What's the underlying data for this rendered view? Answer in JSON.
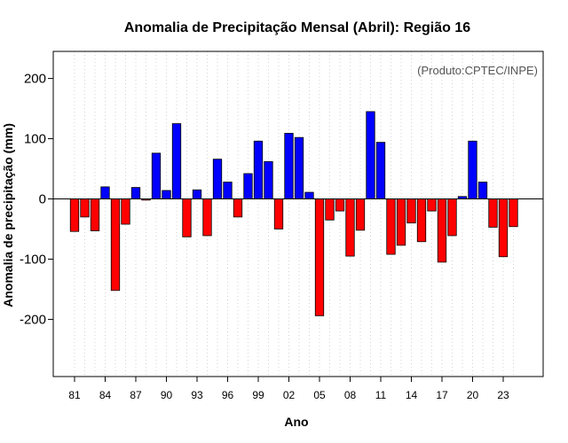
{
  "chart_data": {
    "type": "bar",
    "title": "Anomalia de Precipitação Mensal (Abril): Região 16",
    "xlabel": "Ano",
    "ylabel": "Anomalia de precipitação (mm)",
    "annotation": "(Produto:CPTEC/INPE)",
    "ylim": [
      -295,
      245
    ],
    "yticks": [
      -200,
      -100,
      0,
      100,
      200
    ],
    "ytick_labels": [
      "-200",
      "-100",
      "0",
      "100",
      "200"
    ],
    "grid": "vertical-dotted",
    "colors": {
      "positive": "#0000ff",
      "negative": "#ff0000",
      "zero_line": "#000000",
      "grid": "#d3d3d3"
    },
    "categories": [
      "1981",
      "1982",
      "1983",
      "1984",
      "1985",
      "1986",
      "1987",
      "1988",
      "1989",
      "1990",
      "1991",
      "1992",
      "1993",
      "1994",
      "1995",
      "1996",
      "1997",
      "1998",
      "1999",
      "2000",
      "2001",
      "2002",
      "2003",
      "2004",
      "2005",
      "2006",
      "2007",
      "2008",
      "2009",
      "2010",
      "2011",
      "2012",
      "2013",
      "2014",
      "2015",
      "2016",
      "2017",
      "2018",
      "2019",
      "2020",
      "2021",
      "2022",
      "2023",
      "2024"
    ],
    "xtick_labels": [
      {
        "index": 0,
        "label": "81"
      },
      {
        "index": 3,
        "label": "84"
      },
      {
        "index": 6,
        "label": "87"
      },
      {
        "index": 9,
        "label": "90"
      },
      {
        "index": 12,
        "label": "93"
      },
      {
        "index": 15,
        "label": "96"
      },
      {
        "index": 18,
        "label": "99"
      },
      {
        "index": 21,
        "label": "02"
      },
      {
        "index": 24,
        "label": "05"
      },
      {
        "index": 27,
        "label": "08"
      },
      {
        "index": 30,
        "label": "11"
      },
      {
        "index": 33,
        "label": "14"
      },
      {
        "index": 36,
        "label": "17"
      },
      {
        "index": 39,
        "label": "20"
      },
      {
        "index": 42,
        "label": "23"
      }
    ],
    "values": [
      -54,
      -30,
      -53,
      20,
      -152,
      -42,
      19,
      -2,
      76,
      14,
      125,
      -63,
      15,
      -61,
      66,
      28,
      -30,
      42,
      96,
      62,
      -50,
      109,
      102,
      11,
      -194,
      -35,
      -20,
      -95,
      -52,
      145,
      94,
      -92,
      -77,
      -40,
      -71,
      -20,
      -105,
      -61,
      4,
      96,
      28,
      -47,
      -96,
      -46
    ]
  }
}
